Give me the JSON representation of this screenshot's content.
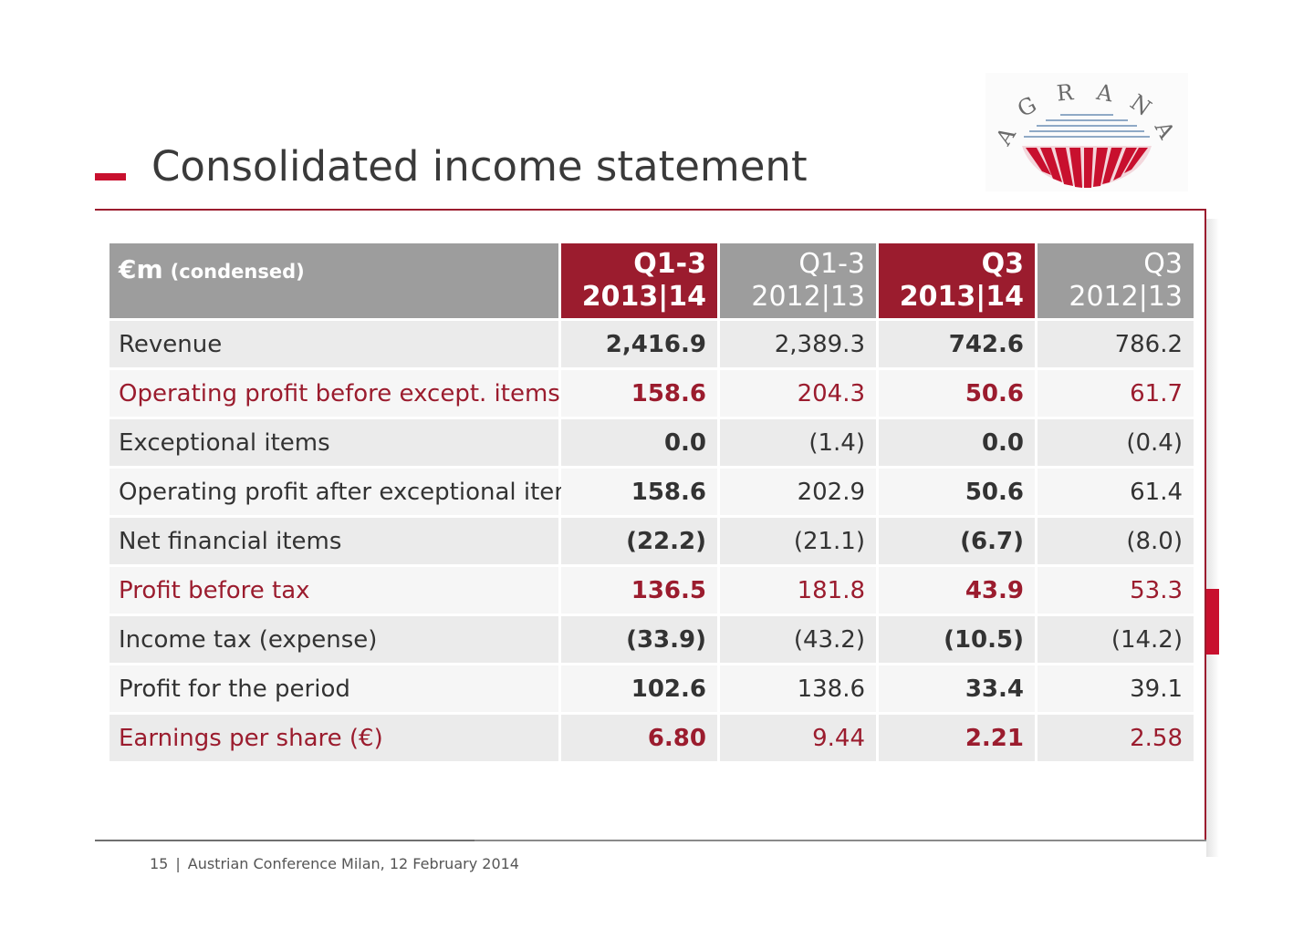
{
  "title": "Consolidated income statement",
  "brand": {
    "logo_text": "AGRANA",
    "accent_color": "#9b1c2e",
    "header_gray": "#9d9d9d"
  },
  "table": {
    "header": {
      "label_main": "€m",
      "label_sub": "(condensed)",
      "columns": [
        {
          "line1": "Q1-3",
          "line2": "2013|14",
          "current": true
        },
        {
          "line1": "Q1-3",
          "line2": "2012|13",
          "current": false
        },
        {
          "line1": "Q3",
          "line2": "2013|14",
          "current": true
        },
        {
          "line1": "Q3",
          "line2": "2012|13",
          "current": false
        }
      ]
    },
    "rows": [
      {
        "label": "Revenue",
        "highlight": false,
        "values": [
          "2,416.9",
          "2,389.3",
          "742.6",
          "786.2"
        ]
      },
      {
        "label": "Operating profit before except. items",
        "highlight": true,
        "values": [
          "158.6",
          "204.3",
          "50.6",
          "61.7"
        ]
      },
      {
        "label": "Exceptional items",
        "highlight": false,
        "values": [
          "0.0",
          "(1.4)",
          "0.0",
          "(0.4)"
        ]
      },
      {
        "label": "Operating profit after exceptional items",
        "highlight": false,
        "values": [
          "158.6",
          "202.9",
          "50.6",
          "61.4"
        ]
      },
      {
        "label": "Net financial items",
        "highlight": false,
        "values": [
          "(22.2)",
          "(21.1)",
          "(6.7)",
          "(8.0)"
        ]
      },
      {
        "label": "Profit before tax",
        "highlight": true,
        "values": [
          "136.5",
          "181.8",
          "43.9",
          "53.3"
        ]
      },
      {
        "label": "Income tax (expense)",
        "highlight": false,
        "values": [
          "(33.9)",
          "(43.2)",
          "(10.5)",
          "(14.2)"
        ]
      },
      {
        "label": "Profit for the period",
        "highlight": false,
        "values": [
          "102.6",
          "138.6",
          "33.4",
          "39.1"
        ]
      },
      {
        "label": "Earnings per share (€)",
        "highlight": true,
        "values": [
          "6.80",
          "9.44",
          "2.21",
          "2.58"
        ]
      }
    ]
  },
  "footer": {
    "page_number": "15",
    "separator": "|",
    "text": "Austrian Conference Milan, 12 February 2014"
  }
}
